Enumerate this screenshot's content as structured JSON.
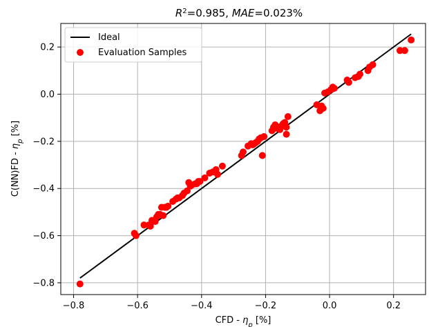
{
  "chart_data": {
    "type": "scatter",
    "title_parts": {
      "r2_symbol": "R",
      "r2_sup": "2",
      "r2_value": "=0.985, ",
      "mae_symbol": "MAE",
      "mae_value": "=0.023%"
    },
    "xlabel": {
      "prefix": "CFD - ",
      "symbol": "η",
      "sub": "p",
      "suffix": " [%]"
    },
    "ylabel": {
      "prefix": "C(NN)FD - ",
      "symbol": "η",
      "sub": "p",
      "suffix": " [%]"
    },
    "xlim": [
      -0.84,
      0.3
    ],
    "ylim": [
      -0.85,
      0.3
    ],
    "xticks": [
      -0.8,
      -0.6,
      -0.4,
      -0.2,
      0.0,
      0.2
    ],
    "xtick_labels": [
      "−0.8",
      "−0.6",
      "−0.4",
      "−0.2",
      "0.0",
      "0.2"
    ],
    "yticks": [
      -0.8,
      -0.6,
      -0.4,
      -0.2,
      0.0,
      0.2
    ],
    "ytick_labels": [
      "−0.8",
      "−0.6",
      "−0.4",
      "−0.2",
      "0.0",
      "0.2"
    ],
    "grid": true,
    "legend_position": "top-left",
    "series": [
      {
        "name": "Ideal",
        "kind": "line",
        "color": "#000000",
        "x": [
          -0.78,
          0.255
        ],
        "y": [
          -0.78,
          0.255
        ]
      },
      {
        "name": "Evaluation Samples",
        "kind": "scatter",
        "color": "#ff0000",
        "points": [
          [
            -0.78,
            -0.805
          ],
          [
            -0.61,
            -0.59
          ],
          [
            -0.605,
            -0.6
          ],
          [
            -0.58,
            -0.555
          ],
          [
            -0.565,
            -0.555
          ],
          [
            -0.56,
            -0.56
          ],
          [
            -0.555,
            -0.535
          ],
          [
            -0.545,
            -0.54
          ],
          [
            -0.54,
            -0.52
          ],
          [
            -0.535,
            -0.51
          ],
          [
            -0.53,
            -0.51
          ],
          [
            -0.525,
            -0.48
          ],
          [
            -0.515,
            -0.48
          ],
          [
            -0.51,
            -0.48
          ],
          [
            -0.505,
            -0.475
          ],
          [
            -0.52,
            -0.515
          ],
          [
            -0.49,
            -0.455
          ],
          [
            -0.48,
            -0.445
          ],
          [
            -0.475,
            -0.44
          ],
          [
            -0.47,
            -0.44
          ],
          [
            -0.46,
            -0.43
          ],
          [
            -0.455,
            -0.42
          ],
          [
            -0.445,
            -0.41
          ],
          [
            -0.44,
            -0.375
          ],
          [
            -0.435,
            -0.39
          ],
          [
            -0.43,
            -0.385
          ],
          [
            -0.42,
            -0.38
          ],
          [
            -0.415,
            -0.38
          ],
          [
            -0.41,
            -0.37
          ],
          [
            -0.405,
            -0.37
          ],
          [
            -0.39,
            -0.355
          ],
          [
            -0.375,
            -0.335
          ],
          [
            -0.365,
            -0.33
          ],
          [
            -0.355,
            -0.32
          ],
          [
            -0.35,
            -0.34
          ],
          [
            -0.335,
            -0.305
          ],
          [
            -0.275,
            -0.26
          ],
          [
            -0.27,
            -0.245
          ],
          [
            -0.255,
            -0.22
          ],
          [
            -0.245,
            -0.21
          ],
          [
            -0.24,
            -0.215
          ],
          [
            -0.235,
            -0.21
          ],
          [
            -0.23,
            -0.205
          ],
          [
            -0.225,
            -0.2
          ],
          [
            -0.22,
            -0.19
          ],
          [
            -0.215,
            -0.185
          ],
          [
            -0.21,
            -0.26
          ],
          [
            -0.205,
            -0.18
          ],
          [
            -0.18,
            -0.155
          ],
          [
            -0.175,
            -0.14
          ],
          [
            -0.17,
            -0.13
          ],
          [
            -0.165,
            -0.145
          ],
          [
            -0.16,
            -0.14
          ],
          [
            -0.155,
            -0.15
          ],
          [
            -0.15,
            -0.135
          ],
          [
            -0.145,
            -0.125
          ],
          [
            -0.14,
            -0.12
          ],
          [
            -0.135,
            -0.14
          ],
          [
            -0.135,
            -0.17
          ],
          [
            -0.13,
            -0.095
          ],
          [
            -0.04,
            -0.045
          ],
          [
            -0.03,
            -0.07
          ],
          [
            -0.025,
            -0.05
          ],
          [
            -0.02,
            -0.06
          ],
          [
            -0.015,
            0.005
          ],
          [
            -0.005,
            0.01
          ],
          [
            0.005,
            0.02
          ],
          [
            0.01,
            0.03
          ],
          [
            0.015,
            0.025
          ],
          [
            0.055,
            0.06
          ],
          [
            0.06,
            0.05
          ],
          [
            0.08,
            0.07
          ],
          [
            0.09,
            0.075
          ],
          [
            0.095,
            0.085
          ],
          [
            0.12,
            0.1
          ],
          [
            0.125,
            0.115
          ],
          [
            0.135,
            0.125
          ],
          [
            0.22,
            0.185
          ],
          [
            0.235,
            0.185
          ],
          [
            0.255,
            0.23
          ]
        ]
      }
    ]
  }
}
